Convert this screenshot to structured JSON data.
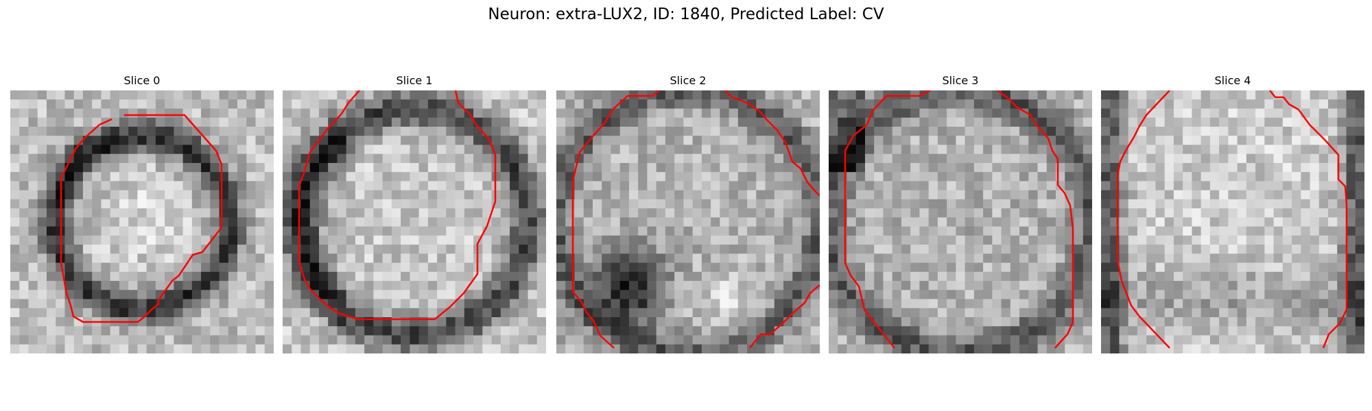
{
  "figure": {
    "title": "Neuron: extra-LUX2, ID: 1840, Predicted Label: CV"
  },
  "panels": [
    {
      "title": "Slice 0",
      "seed": 11,
      "pattern": "ring"
    },
    {
      "title": "Slice 1",
      "seed": 23,
      "pattern": "ring-left"
    },
    {
      "title": "Slice 2",
      "seed": 37,
      "pattern": "dark-corner"
    },
    {
      "title": "Slice 3",
      "seed": 41,
      "pattern": "noise"
    },
    {
      "title": "Slice 4",
      "seed": 53,
      "pattern": "soft"
    }
  ],
  "colors": {
    "contour": "#ff0000",
    "background": "#ffffff",
    "text": "#000000"
  }
}
